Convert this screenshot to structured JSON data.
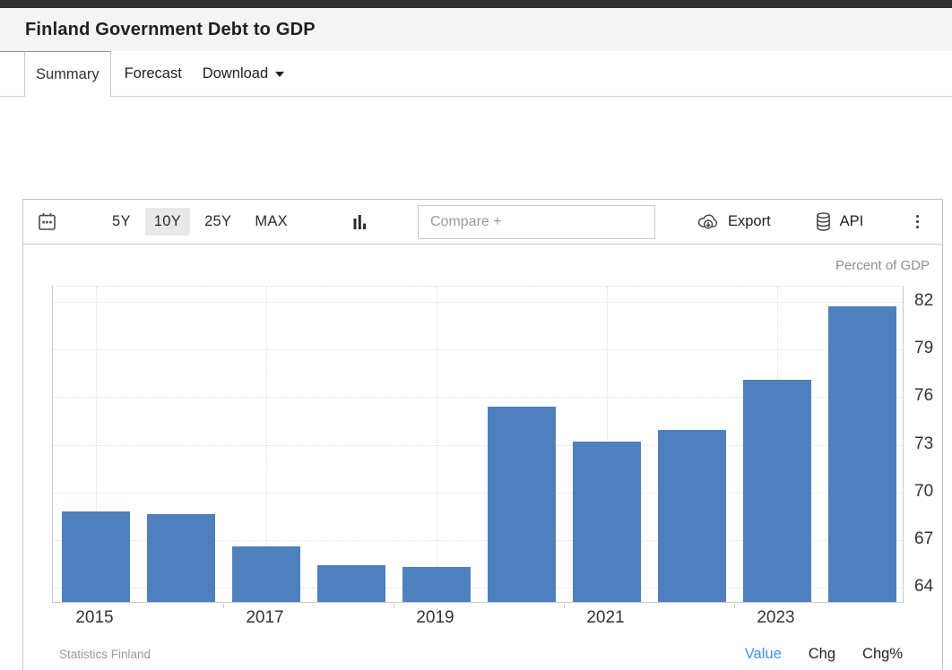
{
  "header": {
    "title": "Finland Government Debt to GDP"
  },
  "tabs": {
    "summary": "Summary",
    "forecast": "Forecast",
    "download": "Download"
  },
  "toolbar": {
    "ranges": [
      "5Y",
      "10Y",
      "25Y",
      "MAX"
    ],
    "active_range": "10Y",
    "compare_placeholder": "Compare +",
    "export_label": "Export",
    "api_label": "API"
  },
  "chart": {
    "unit_label": "Percent of GDP",
    "source": "Statistics Finland",
    "footer_links": [
      "Value",
      "Chg",
      "Chg%"
    ],
    "active_footer_link": "Value",
    "colors": {
      "bar": "#4d80bd",
      "active_link": "#3b94e0",
      "range_active_bg": "#e8e8e8"
    }
  },
  "chart_data": {
    "type": "bar",
    "title": "Finland Government Debt to GDP",
    "ylabel": "Percent of GDP",
    "categories": [
      "2015",
      "2016",
      "2017",
      "2018",
      "2019",
      "2020",
      "2021",
      "2022",
      "2023",
      "2024"
    ],
    "values": [
      68.7,
      68.5,
      66.5,
      65.3,
      65.2,
      75.3,
      73.1,
      73.8,
      77.0,
      81.6
    ],
    "yticks": [
      64,
      67,
      70,
      73,
      76,
      79,
      82
    ],
    "xtick_labels": [
      "2015",
      "2017",
      "2019",
      "2021",
      "2023"
    ],
    "ylim": [
      63.0,
      82.95
    ],
    "grid": true,
    "y_axis_side": "right",
    "legend": false
  }
}
